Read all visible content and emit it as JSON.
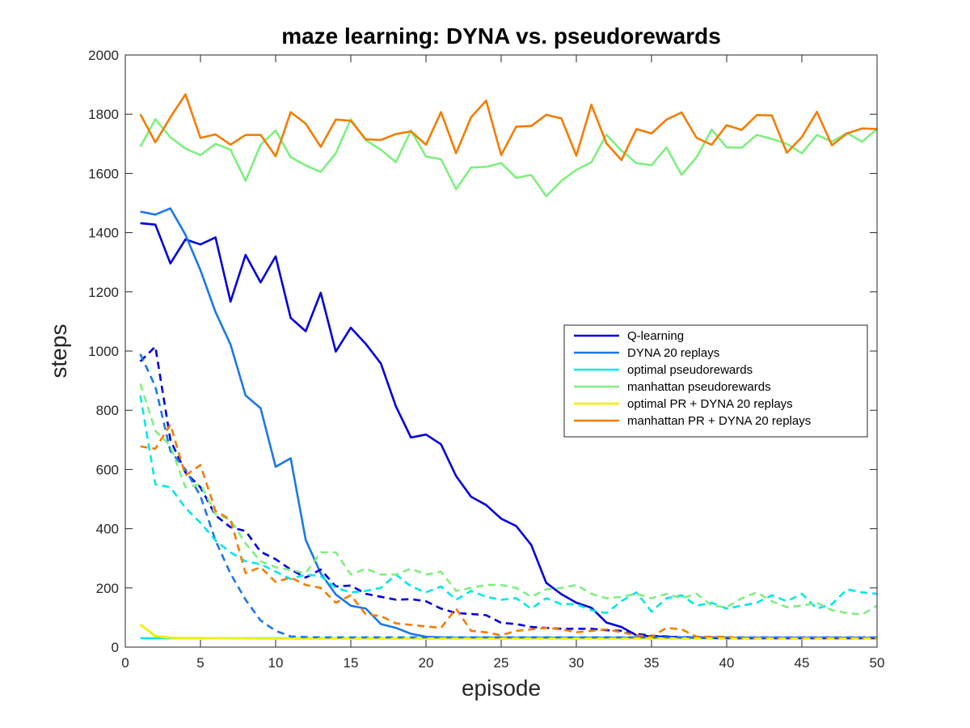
{
  "chart_data": {
    "type": "line",
    "title": "maze learning: DYNA vs. pseudorewards",
    "xlabel": "episode",
    "ylabel": "steps",
    "xlim": [
      0,
      50
    ],
    "ylim": [
      0,
      2000
    ],
    "xticks": [
      "0",
      "5",
      "10",
      "15",
      "20",
      "25",
      "30",
      "35",
      "40",
      "45",
      "50"
    ],
    "yticks": [
      "0",
      "200",
      "400",
      "600",
      "800",
      "1000",
      "1200",
      "1400",
      "1600",
      "1800",
      "2000"
    ],
    "grid": false,
    "legend_position": "center-right",
    "x": [
      1,
      2,
      3,
      4,
      5,
      6,
      7,
      8,
      9,
      10,
      11,
      12,
      13,
      14,
      15,
      16,
      17,
      18,
      19,
      20,
      21,
      22,
      23,
      24,
      25,
      26,
      27,
      28,
      29,
      30,
      31,
      32,
      33,
      34,
      35,
      36,
      37,
      38,
      39,
      40,
      41,
      42,
      43,
      44,
      45,
      46,
      47,
      48,
      49,
      50
    ],
    "series": [
      {
        "name": "Q-learning",
        "color": "#0000e0",
        "style": "solid",
        "legend": true,
        "values": [
          1432,
          1427,
          1296,
          1377,
          1360,
          1384,
          1167,
          1325,
          1232,
          1320,
          1112,
          1067,
          1197,
          998,
          1079,
          1024,
          958,
          813,
          708,
          718,
          685,
          578,
          508,
          480,
          434,
          409,
          345,
          217,
          179,
          150,
          133,
          83,
          68,
          40,
          37,
          35,
          33,
          33,
          32,
          32,
          31,
          31,
          31,
          30,
          30,
          30,
          30,
          30,
          30,
          30
        ]
      },
      {
        "name": "DYNA 20 replays",
        "color": "#1a78ea",
        "style": "solid",
        "legend": true,
        "values": [
          1471,
          1461,
          1482,
          1393,
          1273,
          1132,
          1022,
          850,
          807,
          609,
          638,
          362,
          249,
          178,
          140,
          130,
          78,
          65,
          45,
          35,
          33,
          32,
          32,
          32,
          32,
          32,
          32,
          32,
          32,
          32,
          32,
          32,
          32,
          32,
          32,
          32,
          32,
          32,
          32,
          32,
          32,
          32,
          32,
          32,
          32,
          32,
          32,
          32,
          32,
          32
        ]
      },
      {
        "name": "optimal pseudorewards",
        "color": "#00e8e8",
        "style": "solid",
        "legend": true,
        "values": [
          30,
          30,
          30,
          30,
          30,
          30,
          30,
          30,
          30,
          30,
          30,
          30,
          30,
          30,
          30,
          30,
          30,
          30,
          30,
          30,
          30,
          30,
          30,
          30,
          30,
          30,
          30,
          30,
          30,
          30,
          30,
          30,
          30,
          30,
          30,
          30,
          30,
          30,
          30,
          30,
          30,
          30,
          30,
          30,
          30,
          30,
          30,
          30,
          30,
          30
        ]
      },
      {
        "name": "manhattan pseudorewards",
        "color": "#7ef07e",
        "style": "solid",
        "legend": true,
        "values": [
          1690,
          1783,
          1722,
          1684,
          1662,
          1700,
          1680,
          1575,
          1697,
          1745,
          1655,
          1627,
          1605,
          1668,
          1783,
          1712,
          1680,
          1638,
          1745,
          1657,
          1648,
          1547,
          1620,
          1622,
          1635,
          1585,
          1595,
          1523,
          1575,
          1612,
          1638,
          1731,
          1677,
          1635,
          1628,
          1688,
          1595,
          1655,
          1748,
          1688,
          1687,
          1730,
          1717,
          1700,
          1668,
          1730,
          1707,
          1737,
          1707,
          1750
        ]
      },
      {
        "name": "optimal PR + DYNA 20 replays",
        "color": "#f0f000",
        "style": "solid",
        "legend": true,
        "values": [
          76,
          38,
          32,
          31,
          31,
          30,
          30,
          30,
          29,
          29,
          29,
          29,
          29,
          29,
          29,
          29,
          29,
          29,
          29,
          29,
          29,
          29,
          29,
          29,
          29,
          29,
          29,
          29,
          29,
          29,
          29,
          29,
          29,
          29,
          29,
          29,
          29,
          29,
          29,
          29,
          29,
          29,
          29,
          29,
          29,
          29,
          29,
          29,
          29,
          29
        ]
      },
      {
        "name": "manhattan PR + DYNA 20 replays",
        "color": "#f57c00",
        "style": "solid",
        "legend": true,
        "values": [
          1800,
          1705,
          1790,
          1867,
          1720,
          1732,
          1697,
          1730,
          1730,
          1658,
          1807,
          1768,
          1690,
          1782,
          1778,
          1715,
          1713,
          1733,
          1742,
          1697,
          1807,
          1668,
          1790,
          1846,
          1662,
          1758,
          1760,
          1798,
          1786,
          1660,
          1832,
          1702,
          1645,
          1750,
          1735,
          1782,
          1806,
          1720,
          1697,
          1763,
          1747,
          1797,
          1796,
          1670,
          1723,
          1808,
          1695,
          1735,
          1752,
          1750
        ]
      },
      {
        "name": "",
        "color": "#0000e0",
        "style": "dashed",
        "legend": false,
        "values": [
          965,
          1015,
          700,
          590,
          540,
          445,
          405,
          392,
          322,
          297,
          262,
          235,
          262,
          205,
          208,
          180,
          170,
          160,
          162,
          155,
          130,
          115,
          112,
          108,
          82,
          78,
          68,
          65,
          62,
          62,
          62,
          57,
          55,
          45,
          38,
          36,
          33,
          32,
          31,
          30,
          30,
          30,
          30,
          30,
          30,
          30,
          30,
          30,
          30,
          30
        ]
      },
      {
        "name": "",
        "color": "#1a78ea",
        "style": "dashed",
        "legend": false,
        "values": [
          990,
          880,
          662,
          600,
          510,
          360,
          248,
          160,
          90,
          55,
          36,
          34,
          33,
          33,
          33,
          33,
          33,
          33,
          33,
          33,
          33,
          33,
          33,
          33,
          33,
          33,
          33,
          33,
          33,
          33,
          33,
          33,
          33,
          33,
          33,
          33,
          33,
          33,
          33,
          33,
          33,
          33,
          33,
          33,
          33,
          33,
          33,
          33,
          33,
          33
        ]
      },
      {
        "name": "",
        "color": "#00e8e8",
        "style": "dashed",
        "legend": false,
        "values": [
          850,
          550,
          540,
          470,
          420,
          360,
          320,
          290,
          280,
          255,
          230,
          245,
          240,
          200,
          185,
          190,
          200,
          245,
          205,
          185,
          205,
          160,
          190,
          170,
          160,
          165,
          130,
          165,
          145,
          145,
          125,
          115,
          155,
          185,
          120,
          165,
          175,
          140,
          150,
          130,
          140,
          150,
          175,
          155,
          180,
          130,
          145,
          195,
          185,
          180
        ]
      },
      {
        "name": "",
        "color": "#7ef07e",
        "style": "dashed",
        "legend": false,
        "values": [
          890,
          730,
          680,
          540,
          550,
          450,
          430,
          350,
          290,
          270,
          260,
          250,
          320,
          320,
          245,
          265,
          245,
          245,
          265,
          245,
          255,
          190,
          200,
          210,
          210,
          200,
          170,
          195,
          200,
          210,
          180,
          165,
          170,
          180,
          165,
          180,
          165,
          180,
          140,
          135,
          165,
          185,
          155,
          135,
          140,
          150,
          125,
          115,
          110,
          140
        ]
      },
      {
        "name": "",
        "color": "#f57c00",
        "style": "dashed",
        "legend": false,
        "values": [
          678,
          670,
          752,
          580,
          615,
          460,
          430,
          250,
          270,
          220,
          235,
          210,
          200,
          150,
          175,
          110,
          105,
          80,
          75,
          70,
          65,
          130,
          55,
          50,
          40,
          55,
          60,
          65,
          60,
          50,
          55,
          60,
          50,
          40,
          35,
          65,
          60,
          35,
          35,
          35,
          30,
          30,
          30,
          30,
          30,
          30,
          30,
          30,
          30,
          30
        ]
      },
      {
        "name": "",
        "color": "#f0f000",
        "style": "dashed",
        "legend": false,
        "values": [
          76,
          36,
          31,
          30,
          30,
          30,
          30,
          29,
          29,
          29,
          29,
          29,
          29,
          29,
          29,
          29,
          29,
          29,
          29,
          29,
          29,
          29,
          29,
          29,
          29,
          29,
          29,
          29,
          29,
          29,
          29,
          29,
          29,
          29,
          29,
          29,
          29,
          29,
          29,
          29,
          29,
          29,
          29,
          29,
          29,
          29,
          29,
          29,
          29,
          29
        ]
      }
    ]
  }
}
